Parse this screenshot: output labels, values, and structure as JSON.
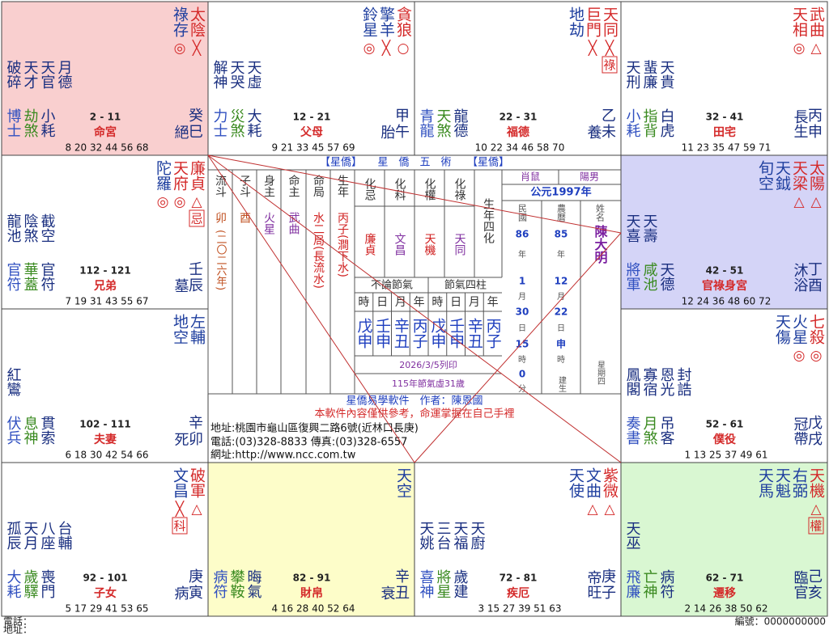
{
  "palaces": [
    {
      "bg": "#f9cfcf",
      "stars": [
        {
          "name": "太陰",
          "color": "#d42a2a",
          "mark": "╳"
        },
        {
          "name": "祿存",
          "color": "#1f3f9f",
          "mark": "◎"
        }
      ],
      "minors": [
        "破碎",
        "天才",
        "天官",
        "月德"
      ],
      "gods": [
        "博士",
        "劫煞",
        "小耗"
      ],
      "age": "2 - 11",
      "palace": "命宮",
      "stem": "癸",
      "changsheng": "絕",
      "branch": "巳",
      "years": "8 20 32 44 56 68"
    },
    {
      "stars": [
        {
          "name": "貪狼",
          "color": "#d42a2a",
          "mark": "○"
        },
        {
          "name": "擎羊",
          "color": "#1f3f9f",
          "mark": "╳"
        },
        {
          "name": "鈴星",
          "color": "#1f3f9f",
          "mark": "◎"
        }
      ],
      "minors": [
        "解神",
        "天哭",
        "天虛"
      ],
      "gods": [
        "力士",
        "災煞",
        "大耗"
      ],
      "age": "12 - 21",
      "palace": "父母",
      "stem": "甲",
      "changsheng": "胎",
      "branch": "午",
      "years": "9 21 33 45 57 69"
    },
    {
      "stars": [
        {
          "name": "天同",
          "color": "#d42a2a",
          "mark": "╳",
          "hua": "祿"
        },
        {
          "name": "巨門",
          "color": "#d42a2a",
          "mark": "╳"
        },
        {
          "name": "地劫",
          "color": "#1f3f9f"
        }
      ],
      "minors": [],
      "gods": [
        "青龍",
        "天煞",
        "龍德"
      ],
      "age": "22 - 31",
      "palace": "福德",
      "stem": "乙",
      "changsheng": "養",
      "branch": "未",
      "years": "10 22 34 46 58 70"
    },
    {
      "stars": [
        {
          "name": "武曲",
          "color": "#d42a2a",
          "mark": "△"
        },
        {
          "name": "天相",
          "color": "#d42a2a",
          "mark": "◎"
        }
      ],
      "minors": [
        "天刑",
        "蜚廉",
        "天貴"
      ],
      "gods": [
        "小耗",
        "指背",
        "白虎"
      ],
      "age": "32 - 41",
      "palace": "田宅",
      "stem": "丙",
      "changsheng": "長生",
      "branch": "申",
      "years": "11 23 35 47 59 71"
    },
    {
      "bg": "#d4d4f7",
      "stars": [
        {
          "name": "太陽",
          "color": "#d42a2a",
          "mark": "△"
        },
        {
          "name": "天梁",
          "color": "#d42a2a",
          "mark": "△"
        },
        {
          "name": "天鉞",
          "color": "#1f3f9f"
        },
        {
          "name": "旬空",
          "color": "#1f3f9f"
        }
      ],
      "minors": [
        "天喜",
        "天壽"
      ],
      "gods": [
        "將軍",
        "咸池",
        "天德"
      ],
      "age": "42 - 51",
      "palace": "官祿身宮",
      "stem": "丁",
      "changsheng": "沐浴",
      "branch": "酉",
      "years": "12 24 36 48 60 72"
    },
    {
      "stars": [
        {
          "name": "七殺",
          "color": "#d42a2a",
          "mark": "◎"
        },
        {
          "name": "火星",
          "color": "#1f3f9f",
          "mark": "◎"
        },
        {
          "name": "天傷",
          "color": "#1f3f9f"
        }
      ],
      "minors": [
        "鳳閣",
        "寡宿",
        "恩光",
        "封誥"
      ],
      "gods": [
        "奏書",
        "月煞",
        "吊客"
      ],
      "age": "52 - 61",
      "palace": "僕役",
      "stem": "戊",
      "changsheng": "冠帶",
      "branch": "戌",
      "years": "1 13 25 37 49 61"
    },
    {
      "bg": "#d9f7d2",
      "stars": [
        {
          "name": "天機",
          "color": "#d42a2a",
          "mark": "△",
          "hua": "權"
        },
        {
          "name": "右弼",
          "color": "#1f3f9f"
        },
        {
          "name": "天魁",
          "color": "#1f3f9f"
        },
        {
          "name": "天馬",
          "color": "#1f3f9f"
        }
      ],
      "minors": [
        "天巫"
      ],
      "gods": [
        "飛廉",
        "亡神",
        "病符"
      ],
      "age": "62 - 71",
      "palace": "遷移",
      "stem": "己",
      "changsheng": "臨官",
      "branch": "亥",
      "years": "2 14 26 38 50 62"
    },
    {
      "stars": [
        {
          "name": "紫微",
          "color": "#d42a2a",
          "mark": "△"
        },
        {
          "name": "文曲",
          "color": "#1f3f9f",
          "mark": "△"
        },
        {
          "name": "天使",
          "color": "#1f3f9f"
        }
      ],
      "minors": [
        "天姚",
        "三台",
        "天福",
        "天廚"
      ],
      "gods": [
        "喜神",
        "將星",
        "歲建"
      ],
      "age": "72 - 81",
      "palace": "疾厄",
      "stem": "庚",
      "changsheng": "帝旺",
      "branch": "子",
      "years": "3 15 27 39 51 63"
    },
    {
      "bg": "#fdfdc9",
      "stars": [
        {
          "name": "天空",
          "color": "#1f3f9f"
        }
      ],
      "minors": [],
      "gods": [
        "病符",
        "攀鞍",
        "晦氣"
      ],
      "age": "82 - 91",
      "palace": "財帛",
      "stem": "辛",
      "changsheng": "衰",
      "branch": "丑",
      "years": "4 16 28 40 52 64"
    },
    {
      "stars": [
        {
          "name": "破軍",
          "color": "#d42a2a",
          "mark": "△"
        },
        {
          "name": "文昌",
          "color": "#1f3f9f",
          "mark": "╳",
          "hua": "科"
        }
      ],
      "minors": [
        "孤辰",
        "天月",
        "八座",
        "台輔"
      ],
      "gods": [
        "大耗",
        "歲驛",
        "喪門"
      ],
      "age": "92 - 101",
      "palace": "子女",
      "stem": "庚",
      "changsheng": "病",
      "branch": "寅",
      "years": "5 17 29 41 53 65"
    },
    {
      "stars": [
        {
          "name": "左輔",
          "color": "#1f3f9f"
        },
        {
          "name": "地空",
          "color": "#1f3f9f"
        }
      ],
      "minors": [
        "紅鸞"
      ],
      "gods": [
        "伏兵",
        "息神",
        "貫索"
      ],
      "age": "102 - 111",
      "palace": "夫妻",
      "stem": "辛",
      "changsheng": "死",
      "branch": "卯",
      "years": "6 18 30 42 54 66"
    },
    {
      "stars": [
        {
          "name": "廉貞",
          "color": "#d42a2a",
          "mark": "△",
          "hua": "忌"
        },
        {
          "name": "天府",
          "color": "#d42a2a",
          "mark": "◎"
        },
        {
          "name": "陀羅",
          "color": "#1f3f9f",
          "mark": "◎"
        }
      ],
      "minors": [
        "龍池",
        "陰煞",
        "截空"
      ],
      "gods": [
        "官符",
        "華蓋",
        "官符"
      ],
      "age": "112 - 121",
      "palace": "兄弟",
      "stem": "壬",
      "changsheng": "墓",
      "branch": "辰",
      "years": "7 19 31 43 55 67"
    }
  ],
  "center": {
    "banner": "【星僑】　　星　僑　五　術　　【星僑】",
    "columns": [
      {
        "head": "流斗",
        "value": "卯",
        "extra": "(二〇二六年)",
        "color": "#c05020"
      },
      {
        "head": "子斗",
        "value": "酉",
        "color": "#c05020"
      },
      {
        "head": "身主",
        "value": "火星",
        "color": "#8030a0"
      },
      {
        "head": "命主",
        "value": "武曲",
        "color": "#8030a0"
      },
      {
        "head": "命局",
        "value": "水二局(長流水)",
        "color": "#d02020"
      },
      {
        "head": "生年",
        "value": "丙子(澗下水)",
        "color": "#d02020"
      }
    ],
    "sihua": [
      {
        "head": "化忌",
        "value": "廉貞",
        "color": "#d02020"
      },
      {
        "head": "化科",
        "value": "文昌",
        "color": "#8030a0"
      },
      {
        "head": "化權",
        "value": "天機",
        "color": "#d02020"
      },
      {
        "head": "化祿",
        "value": "天同",
        "color": "#8030a0"
      }
    ],
    "sihua_label": "生年四化",
    "pillars": {
      "left_title": "不論節氣",
      "right_title": "節氣四柱",
      "heads": [
        "時",
        "日",
        "月",
        "年",
        "時",
        "日",
        "月",
        "年"
      ],
      "values": [
        "戊申",
        "壬申",
        "辛丑",
        "丙子",
        "戊申",
        "壬申",
        "辛丑",
        "丙子"
      ]
    },
    "printed": "2026/3/5列印",
    "age_note": "115年節氣虛31歲",
    "zodiac": "肖鼠",
    "gender": "陽男",
    "year": "公元1997年",
    "minguo": {
      "head": "民國",
      "items": [
        "86",
        "年",
        "1",
        "月",
        "30",
        "日",
        "15",
        "時",
        "0",
        "分"
      ]
    },
    "lunar": {
      "head": "農曆",
      "items": [
        "85",
        "年",
        "12",
        "月",
        "22",
        "日",
        "申",
        "時",
        "建生"
      ]
    },
    "person": {
      "head": "姓名",
      "value": "陳大明",
      "weekday": "星期四"
    },
    "software": [
      "星僑易學軟件　作者：陳恩國",
      "本軟件內容僅供參考，命運掌握在自己手裡",
      "地址:桃園市龜山區復興二路6號(近林口長庚)",
      "電話:(03)328-8833 傳真:(03)328-6557",
      "網址:http://www.ncc.com.tw"
    ]
  },
  "footer": {
    "phone": "電話：",
    "address": "地址：",
    "serial": "編號：0000000000"
  }
}
